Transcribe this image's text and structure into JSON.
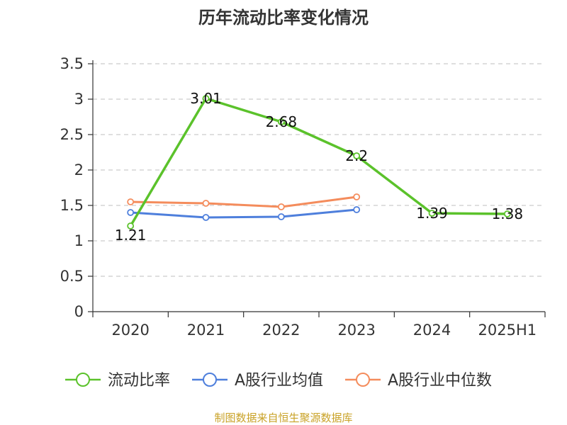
{
  "chart_data": {
    "type": "line",
    "title": "历年流动比率变化情况",
    "categories": [
      "2020",
      "2021",
      "2022",
      "2023",
      "2024",
      "2025H1"
    ],
    "ylim": [
      0,
      3.5
    ],
    "yticks": [
      "0",
      "0.5",
      "1",
      "1.5",
      "2",
      "2.5",
      "3",
      "3.5"
    ],
    "grid": true,
    "legend_position": "bottom",
    "series": [
      {
        "name": "流动比率",
        "color": "#5bc22b",
        "values": [
          1.21,
          3.01,
          2.68,
          2.2,
          1.39,
          1.38
        ],
        "labels": [
          "1.21",
          "3.01",
          "2.68",
          "2.2",
          "1.39",
          "1.38"
        ]
      },
      {
        "name": "A股行业均值",
        "color": "#4e7fdc",
        "values": [
          1.4,
          1.33,
          1.34,
          1.44,
          null,
          null
        ]
      },
      {
        "name": "A股行业中位数",
        "color": "#f48c5c",
        "values": [
          1.55,
          1.53,
          1.48,
          1.62,
          null,
          null
        ]
      }
    ],
    "source": "制图数据来自恒生聚源数据库"
  }
}
